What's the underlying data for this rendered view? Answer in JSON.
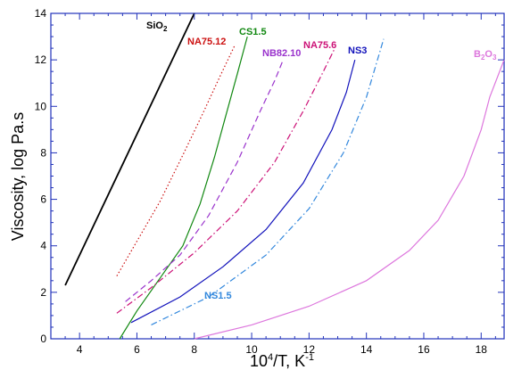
{
  "chart_data": {
    "type": "line",
    "xlabel_base": "10",
    "xlabel_exp": "4",
    "xlabel_rest": "/T, K",
    "xlabel_exp2": "-1",
    "ylabel": "Viscosity, log Pa.s",
    "xlim": [
      3,
      18.8
    ],
    "ylim": [
      0,
      14
    ],
    "x_ticks": [
      4,
      6,
      8,
      10,
      12,
      14,
      16,
      18
    ],
    "y_ticks": [
      0,
      2,
      4,
      6,
      8,
      10,
      12,
      14
    ],
    "grid": false,
    "series": [
      {
        "name": "SiO2",
        "label_main": "SiO",
        "label_sub": "2",
        "color": "#000000",
        "dash": "solid",
        "points": [
          [
            3.5,
            2.3
          ],
          [
            8.0,
            14.0
          ]
        ]
      },
      {
        "name": "CS1.5",
        "label_main": "CS1.5",
        "color": "#118811",
        "dash": "solid",
        "points": [
          [
            5.4,
            0.0
          ],
          [
            6.0,
            1.2
          ],
          [
            6.8,
            2.6
          ],
          [
            7.6,
            4.0
          ],
          [
            8.2,
            5.8
          ],
          [
            8.7,
            7.8
          ],
          [
            9.1,
            9.6
          ],
          [
            9.5,
            11.4
          ],
          [
            9.85,
            13.0
          ]
        ]
      },
      {
        "name": "NA75.12",
        "label_main": "NA75.12",
        "color": "#cc1111",
        "dash": "dotted",
        "points": [
          [
            5.3,
            2.7
          ],
          [
            6.0,
            4.2
          ],
          [
            6.8,
            5.9
          ],
          [
            7.6,
            7.9
          ],
          [
            8.3,
            9.7
          ],
          [
            8.9,
            11.3
          ],
          [
            9.4,
            12.6
          ]
        ]
      },
      {
        "name": "NB82.10",
        "label_main": "NB82.10",
        "color": "#9a33cc",
        "dash": "dashed",
        "points": [
          [
            5.6,
            1.6
          ],
          [
            6.5,
            2.5
          ],
          [
            7.5,
            3.6
          ],
          [
            8.5,
            5.3
          ],
          [
            9.5,
            7.6
          ],
          [
            10.3,
            9.8
          ],
          [
            10.8,
            11.1
          ],
          [
            11.1,
            12.0
          ]
        ]
      },
      {
        "name": "NA75.6",
        "label_main": "NA75.6",
        "color": "#cc1177",
        "dash": "dashdot",
        "points": [
          [
            5.3,
            1.1
          ],
          [
            6.5,
            2.2
          ],
          [
            8.0,
            3.7
          ],
          [
            9.5,
            5.5
          ],
          [
            10.8,
            7.6
          ],
          [
            11.8,
            9.8
          ],
          [
            12.5,
            11.5
          ],
          [
            12.9,
            12.5
          ]
        ]
      },
      {
        "name": "NS3",
        "label_main": "NS3",
        "color": "#1111bb",
        "dash": "solid",
        "points": [
          [
            5.8,
            0.7
          ],
          [
            7.5,
            1.8
          ],
          [
            9.0,
            3.1
          ],
          [
            10.5,
            4.7
          ],
          [
            11.8,
            6.7
          ],
          [
            12.8,
            9.0
          ],
          [
            13.3,
            10.6
          ],
          [
            13.6,
            12.0
          ]
        ]
      },
      {
        "name": "NS1.5",
        "label_main": "NS1.5",
        "color": "#3388dd",
        "dash": "dashdot",
        "points": [
          [
            6.5,
            0.6
          ],
          [
            8.5,
            1.8
          ],
          [
            10.5,
            3.6
          ],
          [
            12.0,
            5.6
          ],
          [
            13.2,
            8.0
          ],
          [
            14.0,
            10.4
          ],
          [
            14.6,
            12.9
          ]
        ]
      },
      {
        "name": "B2O3",
        "label_main": "B",
        "label_sub": "2",
        "label_main2": "O",
        "label_sub2": "3",
        "color": "#dd77dd",
        "dash": "solid",
        "points": [
          [
            8.0,
            0.0
          ],
          [
            10.0,
            0.6
          ],
          [
            12.0,
            1.4
          ],
          [
            14.0,
            2.5
          ],
          [
            15.5,
            3.8
          ],
          [
            16.5,
            5.1
          ],
          [
            17.4,
            7.0
          ],
          [
            18.0,
            9.0
          ],
          [
            18.3,
            10.4
          ],
          [
            18.8,
            12.0
          ]
        ]
      }
    ]
  }
}
